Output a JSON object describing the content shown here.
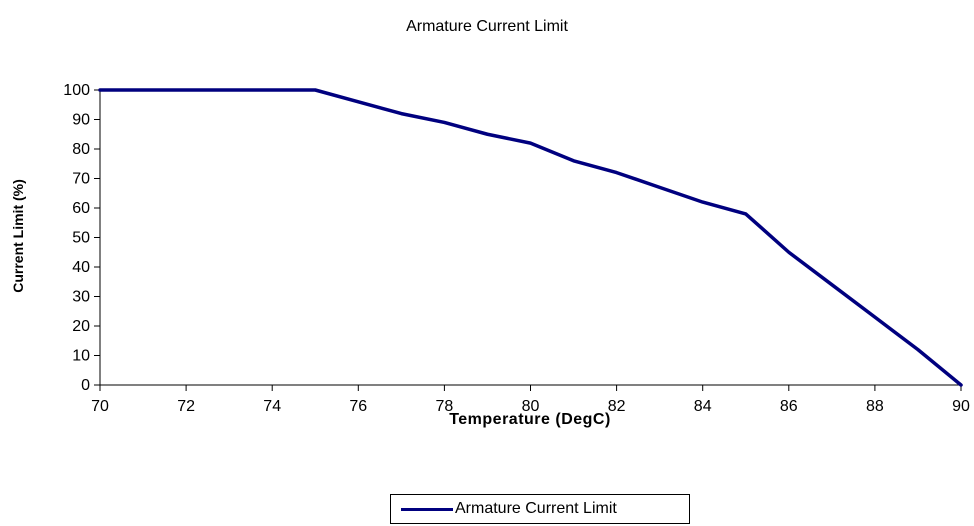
{
  "chart_data": {
    "type": "line",
    "title": "Armature Current Limit",
    "xlabel": "Temperature (DegC)",
    "ylabel": "Current Limit (%)",
    "xlim": [
      70,
      90
    ],
    "ylim": [
      0,
      100
    ],
    "x_ticks": [
      70,
      72,
      74,
      76,
      78,
      80,
      82,
      84,
      86,
      88,
      90
    ],
    "y_ticks": [
      0,
      10,
      20,
      30,
      40,
      50,
      60,
      70,
      80,
      90,
      100
    ],
    "grid": false,
    "legend_position": "bottom",
    "line_color": "#00007f",
    "series": [
      {
        "name": "Armature Current Limit",
        "x": [
          70,
          75,
          76,
          77,
          78,
          79,
          80,
          81,
          82,
          83,
          84,
          85,
          86,
          87,
          88,
          89,
          90
        ],
        "y": [
          100,
          100,
          96,
          92,
          89,
          85,
          82,
          76,
          72,
          67,
          62,
          58,
          45,
          34,
          23,
          12,
          0
        ]
      }
    ]
  }
}
